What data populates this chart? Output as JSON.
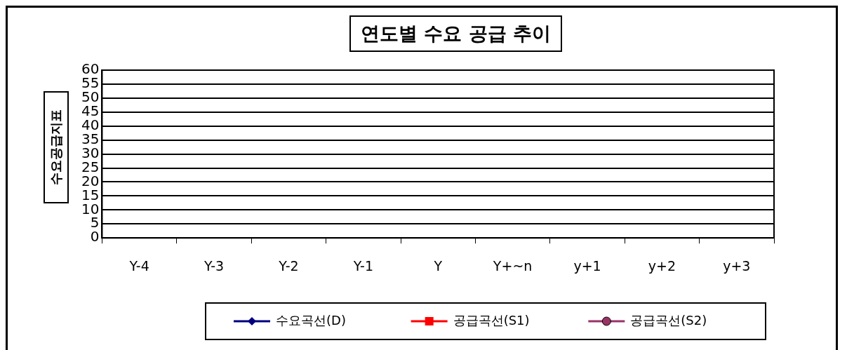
{
  "chart_data": {
    "type": "line",
    "title": "연도별 수요 공급 추이",
    "ylabel": "수요공급지표",
    "categories": [
      "Y-4",
      "Y-3",
      "Y-2",
      "Y-1",
      "Y",
      "Y+~n",
      "y+1",
      "y+2",
      "y+3"
    ],
    "series": [
      {
        "name": "수요곡선(D)",
        "color": "#000080",
        "marker": "diamond",
        "values": [
          null,
          null,
          null,
          null,
          null,
          null,
          null,
          null,
          null
        ]
      },
      {
        "name": "공급곡선(S1)",
        "color": "#ff0000",
        "marker": "square",
        "values": [
          null,
          null,
          null,
          null,
          null,
          null,
          null,
          null,
          null
        ]
      },
      {
        "name": "공급곡선(S2)",
        "color": "#993366",
        "marker": "circle",
        "values": [
          null,
          null,
          null,
          null,
          null,
          null,
          null,
          null,
          null
        ]
      }
    ],
    "ylim": [
      0,
      60
    ],
    "yticks": [
      0,
      5,
      10,
      15,
      20,
      25,
      30,
      35,
      40,
      45,
      50,
      55,
      60
    ],
    "grid": "y",
    "legend": "bottom"
  }
}
